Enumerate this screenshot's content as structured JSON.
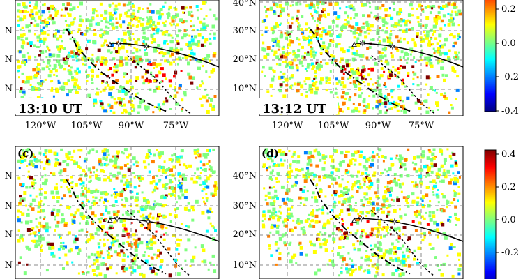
{
  "figure": {
    "panels": [
      {
        "label": "",
        "time": "13:10 UT",
        "lat_labels": [
          "N",
          "N",
          "N"
        ],
        "lon_labels": [
          "120°W",
          "105°W",
          "90°W",
          "75°W"
        ]
      },
      {
        "label": "",
        "time": "13:12 UT",
        "lat_labels": [
          "40°N",
          "30°N",
          "20°N",
          "10°N"
        ],
        "lon_labels": [
          "120°W",
          "105°W",
          "90°W",
          "75°W"
        ]
      },
      {
        "label": "(c)",
        "time": "",
        "lat_labels": [
          "N",
          "N",
          "N",
          "N"
        ],
        "lon_labels": []
      },
      {
        "label": "(d)",
        "time": "",
        "lat_labels": [
          "40°N",
          "30°N",
          "20°N",
          "10°N"
        ],
        "lon_labels": []
      }
    ],
    "colorbar_top": {
      "ticks": [
        "0.2",
        "0.0",
        "-0.2",
        "-0.4"
      ]
    },
    "colorbar_bottom": {
      "ticks": [
        "0.4",
        "0.2",
        "0.0",
        "-0.2"
      ]
    },
    "colormap": [
      "#00007f",
      "#0000ff",
      "#007fff",
      "#00ffff",
      "#7fff7f",
      "#ffff00",
      "#ff7f00",
      "#ff0000",
      "#7f0000"
    ]
  }
}
